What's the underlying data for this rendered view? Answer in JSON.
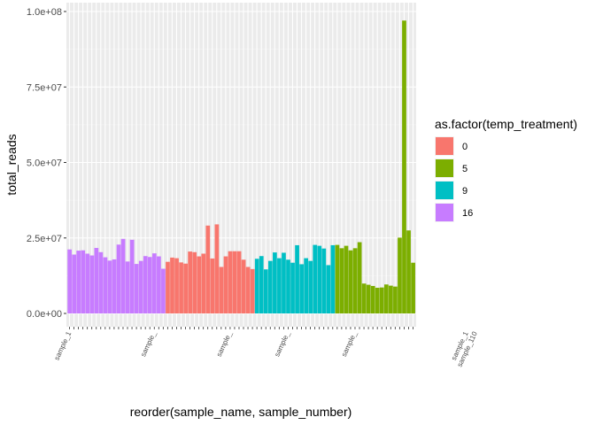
{
  "chart_data": {
    "type": "bar",
    "title": "",
    "xlabel": "reorder(sample_name, sample_number)",
    "ylabel": "total_reads",
    "ylim": [
      0,
      103000000
    ],
    "y_ticks": [
      0,
      25000000,
      50000000,
      75000000,
      100000000
    ],
    "y_tick_labels": [
      "0.0e+00",
      "2.5e+07",
      "5.0e+07",
      "7.5e+07",
      "1.0e+08"
    ],
    "grid": true,
    "legend": {
      "title": "as.factor(temp_treatment)",
      "placement": "right",
      "entries": [
        {
          "label": "0",
          "color": "#F8766D"
        },
        {
          "label": "5",
          "color": "#7CAE00"
        },
        {
          "label": "9",
          "color": "#00BFC4"
        },
        {
          "label": "16",
          "color": "#C77CFF"
        }
      ]
    },
    "x_tick_labels_visible": [
      {
        "index": 0,
        "label": "sample_1"
      },
      {
        "index": 19,
        "label": "sample_"
      },
      {
        "index": 36,
        "label": "sample_"
      },
      {
        "index": 49,
        "label": "sample_"
      },
      {
        "index": 64,
        "label": "sample_"
      },
      {
        "index": 89,
        "label": "sample_1"
      },
      {
        "index": 91,
        "label": "sample_110"
      }
    ],
    "series": [
      {
        "name": "16",
        "values": [
          21200000,
          19500000,
          20800000,
          20900000,
          19800000,
          19200000,
          21700000,
          20300000,
          18600000,
          17500000,
          17900000,
          22800000,
          24700000,
          17200000,
          24400000,
          16400000,
          17400000,
          19000000,
          18700000,
          19900000,
          18900000,
          14800000
        ]
      },
      {
        "name": "0",
        "values": [
          17100000,
          18500000,
          18300000,
          16900000,
          16500000,
          20500000,
          20300000,
          18900000,
          19800000,
          29100000,
          18200000,
          29500000,
          15400000,
          18900000,
          20600000,
          20600000,
          20600000,
          17800000,
          15400000,
          14700000
        ]
      },
      {
        "name": "9",
        "values": [
          18100000,
          19000000,
          14600000,
          17400000,
          20200000,
          18300000,
          20100000,
          17800000,
          16800000,
          22600000,
          16300000,
          18300000,
          17400000,
          22700000,
          22400000,
          21500000,
          16000000,
          22600000
        ]
      },
      {
        "name": "5",
        "values": [
          22700000,
          21600000,
          22400000,
          20900000,
          21600000,
          23600000,
          9900000,
          9500000,
          9100000,
          8500000,
          8600000,
          9600000,
          9200000,
          8900000,
          25100000,
          97000000,
          27500000,
          16800000
        ]
      }
    ]
  }
}
